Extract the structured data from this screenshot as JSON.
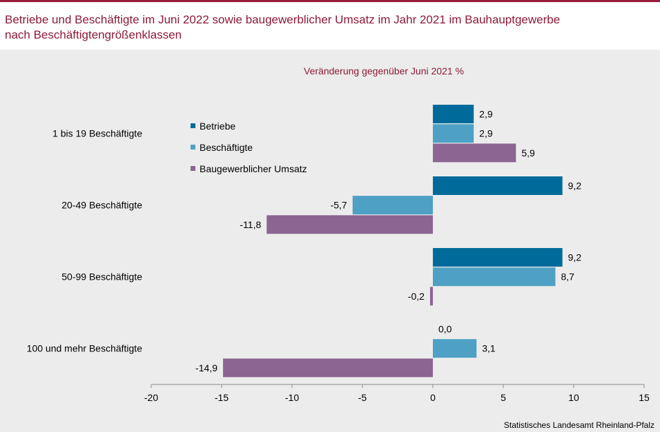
{
  "title": {
    "line1": "Betriebe und Beschäftigte im Juni 2022 sowie baugewerblicher Umsatz im Jahr 2021 im Bauhauptgewerbe",
    "line2": "nach Beschäftigtengrößenklassen"
  },
  "source": "Statistisches Landesamt Rheinland-Pfalz",
  "colors": {
    "title": "#8c1a38",
    "betriebe": "#006b9a",
    "beschaeftigte": "#4ea1c4",
    "umsatz": "#8c6593"
  },
  "chart_data": {
    "type": "bar",
    "orientation": "horizontal",
    "title": "Veränderung gegenüber Juni 2021 %",
    "categories": [
      "1 bis 19 Beschäftigte",
      "20-49 Beschäftigte",
      "50-99 Beschäftigte",
      "100 und mehr Beschäftigte"
    ],
    "series": [
      {
        "name": "Betriebe",
        "values": [
          2.9,
          9.2,
          9.2,
          0.0
        ],
        "labels": [
          "2,9",
          "9,2",
          "9,2",
          "0,0"
        ],
        "color": "#006b9a"
      },
      {
        "name": "Beschäftigte",
        "values": [
          2.9,
          -5.7,
          8.7,
          3.1
        ],
        "labels": [
          "2,9",
          "-5,7",
          "8,7",
          "3,1"
        ],
        "color": "#4ea1c4"
      },
      {
        "name": "Baugewerblicher Umsatz",
        "values": [
          5.9,
          -11.8,
          -0.2,
          -14.9
        ],
        "labels": [
          "5,9",
          "-11,8",
          "-0,2",
          "-14,9"
        ],
        "color": "#8c6593"
      }
    ],
    "xlim": [
      -20,
      15
    ],
    "xticks": [
      -20,
      -15,
      -10,
      -5,
      0,
      5,
      10,
      15
    ],
    "xtick_labels": [
      "-20",
      "-15",
      "-10",
      "-5",
      "0",
      "5",
      "10",
      "15"
    ],
    "legend_position": "left-top"
  }
}
